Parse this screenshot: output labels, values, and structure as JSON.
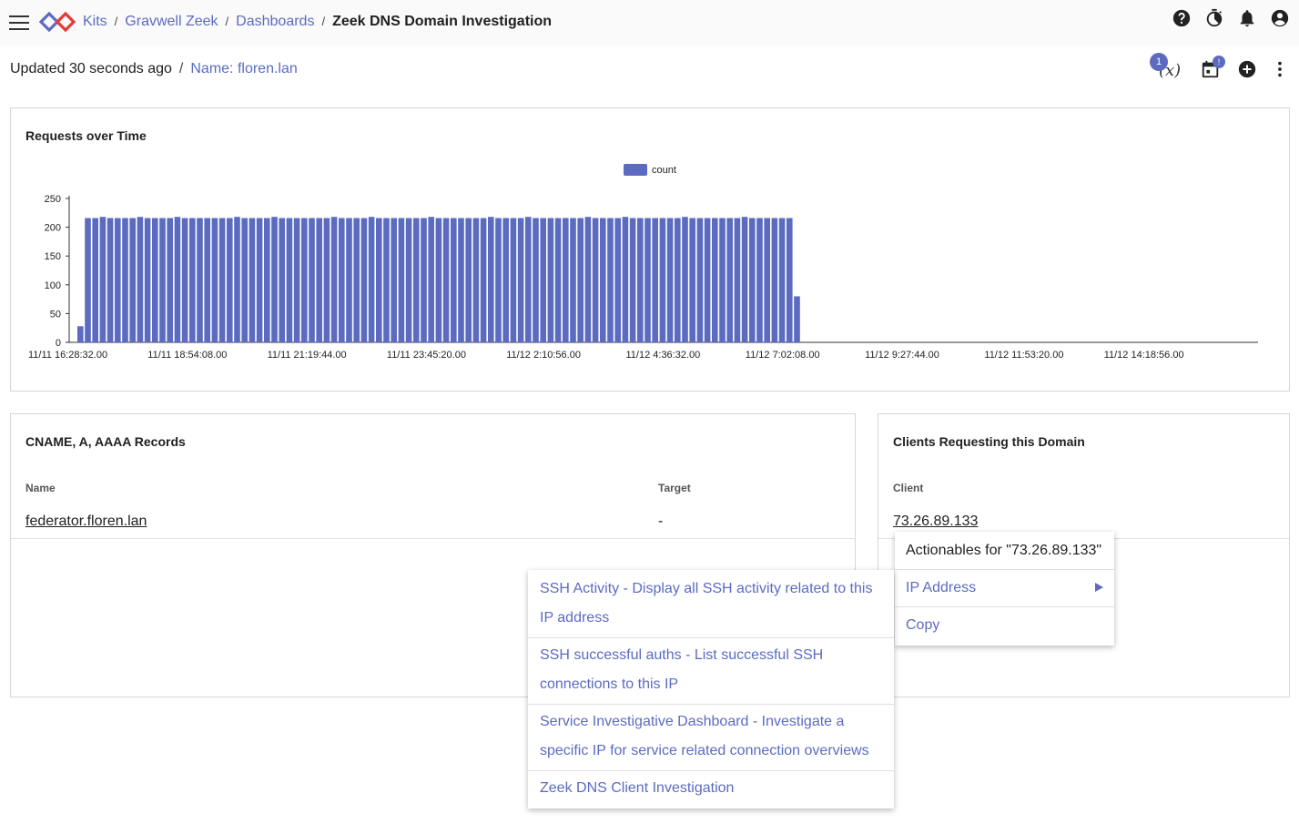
{
  "header": {
    "breadcrumbs": [
      "Kits",
      "Gravwell Zeek",
      "Dashboards"
    ],
    "current": "Zeek DNS Domain Investigation",
    "separator": "/"
  },
  "icons": {
    "menu": "hamburger-menu-icon",
    "logo": "gravwell-logo",
    "help": "help-icon",
    "timer": "timer-icon",
    "notifications": "bell-icon",
    "account": "account-icon",
    "add": "add-circle-icon",
    "more": "more-vert-icon",
    "calendar": "calendar-icon"
  },
  "subbar": {
    "updated": "Updated 30 seconds ago",
    "separator": "/",
    "filter": "Name: floren.lan",
    "variables_label": "(x)",
    "variables_badge": "1",
    "calendar_badge": "!"
  },
  "chart": {
    "title": "Requests over Time"
  },
  "chart_data": {
    "type": "bar",
    "legend": [
      "count"
    ],
    "legend_position": "top-center",
    "bar_color": "#5c6bc0",
    "yticks": [
      "0",
      "50",
      "100",
      "150",
      "200",
      "250"
    ],
    "ylim": [
      0,
      250
    ],
    "xticks": [
      "11/11 16:28:32.00",
      "11/11 18:54:08.00",
      "11/11 21:19:44.00",
      "11/11 23:45:20.00",
      "11/12 2:10:56.00",
      "11/12 4:36:32.00",
      "11/12 7:02:08.00",
      "11/12 9:27:44.00",
      "11/12 11:53:20.00",
      "11/12 14:18:56.00"
    ],
    "values": [
      28,
      216,
      216,
      218,
      216,
      216,
      216,
      216,
      218,
      216,
      216,
      216,
      216,
      218,
      216,
      216,
      216,
      216,
      216,
      216,
      216,
      218,
      216,
      216,
      216,
      216,
      218,
      216,
      216,
      216,
      216,
      216,
      216,
      216,
      218,
      216,
      216,
      216,
      216,
      218,
      216,
      216,
      216,
      216,
      216,
      216,
      216,
      218,
      216,
      216,
      216,
      216,
      216,
      216,
      216,
      218,
      216,
      216,
      216,
      216,
      218,
      216,
      216,
      216,
      216,
      216,
      216,
      216,
      218,
      216,
      216,
      216,
      216,
      218,
      216,
      216,
      216,
      216,
      216,
      216,
      216,
      218,
      216,
      216,
      216,
      216,
      216,
      216,
      216,
      218,
      216,
      216,
      216,
      216,
      216,
      216,
      80
    ]
  },
  "records": {
    "title": "CNAME, A, AAAA Records",
    "columns": [
      "Name",
      "Target"
    ],
    "rows": [
      [
        "federator.floren.lan",
        "-"
      ]
    ]
  },
  "clients": {
    "title": "Clients Requesting this Domain",
    "columns": [
      "Client"
    ],
    "rows": [
      [
        "73.26.89.133"
      ]
    ]
  },
  "actionables": {
    "header": "Actionables for \"73.26.89.133\"",
    "items": [
      "IP Address",
      "Copy"
    ]
  },
  "submenu": {
    "items": [
      [
        "SSH Activity - Display all SSH activity related to this",
        "IP address"
      ],
      [
        "SSH successful auths - List successful SSH",
        "connections to this IP"
      ],
      [
        "Service Investigative Dashboard - Investigate a",
        "specific IP for service related connection overviews"
      ],
      [
        "Zeek DNS Client Investigation"
      ]
    ]
  }
}
